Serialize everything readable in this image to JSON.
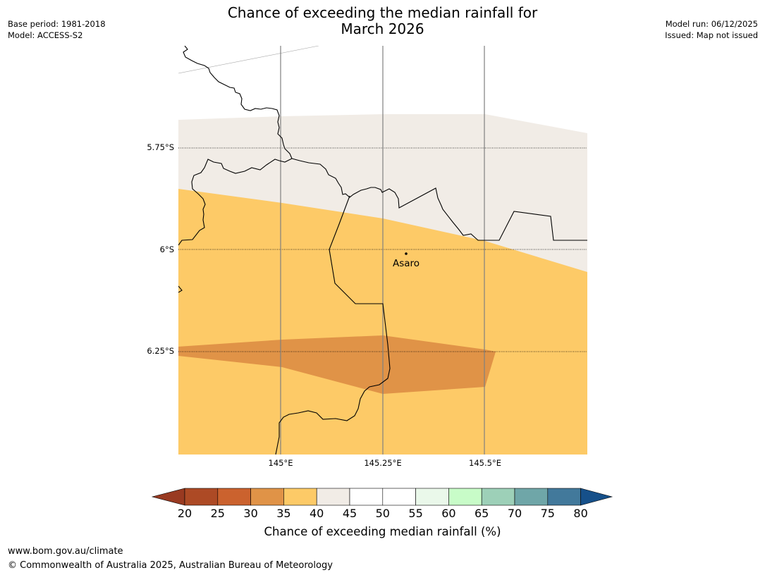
{
  "header": {
    "title_line1": "Chance of exceeding the median rainfall for",
    "title_line2": "March 2026",
    "base_period": "Base period: 1981-2018",
    "model": "Model: ACCESS-S2",
    "model_run": "Model run: 06/12/2025",
    "issued": "Issued: Map not issued"
  },
  "map": {
    "lat_labels": [
      "5.75°S",
      "6°S",
      "6.25°S"
    ],
    "lon_labels": [
      "145°E",
      "145.25°E",
      "145.5°E"
    ],
    "place": {
      "name": "Asaro"
    },
    "region_colors": {
      "band_40_45": "#f1ece6",
      "band_35_40": "#fdca67",
      "band_30_35": "#e09347",
      "border": "#000000",
      "gridline": "#808080"
    }
  },
  "colorbar": {
    "ticks": [
      "20",
      "25",
      "30",
      "35",
      "40",
      "45",
      "50",
      "55",
      "60",
      "65",
      "70",
      "75",
      "80"
    ],
    "colors": [
      "#ad4a25",
      "#cb622e",
      "#e09347",
      "#fdca67",
      "#f1ece6",
      "#ffffff",
      "#ffffff",
      "#eaf8ea",
      "#c8fcc8",
      "#9dd0b8",
      "#6fa6a8",
      "#42799b"
    ],
    "low_extend_color": "#993a21",
    "high_extend_color": "#16508a",
    "label": "Chance of exceeding median rainfall (%)"
  },
  "footer": {
    "url": "www.bom.gov.au/climate",
    "copyright": "© Commonwealth of Australia 2025, Australian Bureau of Meteorology"
  }
}
